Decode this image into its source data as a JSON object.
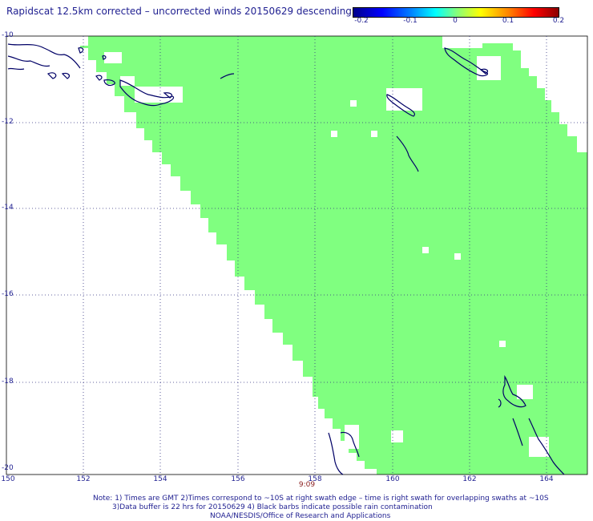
{
  "title": "Rapidscat 12.5km corrected – uncorrected winds 20150629 descending",
  "colorbar": {
    "labels": [
      "-0.2",
      "-0.1",
      "0",
      "0.1",
      "0.2"
    ],
    "min": -0.2,
    "max": 0.2
  },
  "map": {
    "lat_ticks": [
      "-10",
      "-12",
      "-14",
      "-16",
      "-18",
      "-20"
    ],
    "lon_ticks": [
      "150",
      "152",
      "154",
      "156",
      "158",
      "160",
      "162",
      "164"
    ],
    "lat_range": [
      -20,
      -10
    ],
    "lon_range": [
      150,
      165
    ],
    "swath_color": "#80ff80",
    "coast_color": "#000066",
    "grid": "dotted"
  },
  "time_label": "9:09",
  "notes": [
    "Note: 1) Times are GMT 2)Times correspond to ~10S at right swath edge – time is right swath for overlapping swaths at ~10S",
    "3)Data buffer is 22 hrs for 20150629 4) Black barbs indicate possible rain contamination",
    "NOAA/NESDIS/Office of Research and Applications"
  ]
}
